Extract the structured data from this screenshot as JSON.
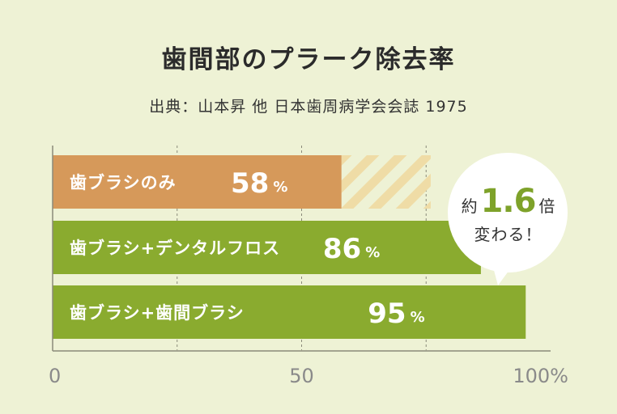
{
  "title": "歯間部のプラーク除去率",
  "subtitle": "出典：山本昇 他 日本歯周病学会会誌 1975",
  "colors": {
    "background": "#eef2d5",
    "bar_orange": "#d6995a",
    "bar_green": "#8aab2f",
    "hatch": "#efdca6",
    "text_dark": "#2b2b2b",
    "accent": "#7ea22a"
  },
  "chart_data": {
    "type": "bar",
    "orientation": "horizontal",
    "categories": [
      "歯ブラシのみ",
      "歯ブラシ+デンタルフロス",
      "歯ブラシ+歯間ブラシ"
    ],
    "values": [
      58,
      86,
      95
    ],
    "value_labels": [
      "58",
      "86",
      "95"
    ],
    "value_unit": "%",
    "xlim": [
      0,
      100
    ],
    "xticks": [
      "0",
      "50",
      "100%"
    ],
    "grid": "dashed vertical",
    "title": "歯間部のプラーク除去率",
    "subtitle": "出典：山本昇 他 日本歯周病学会会誌 1975"
  },
  "callout": {
    "prefix": "約",
    "number": "1.6",
    "suffix": "倍",
    "line2": "変わる！"
  }
}
